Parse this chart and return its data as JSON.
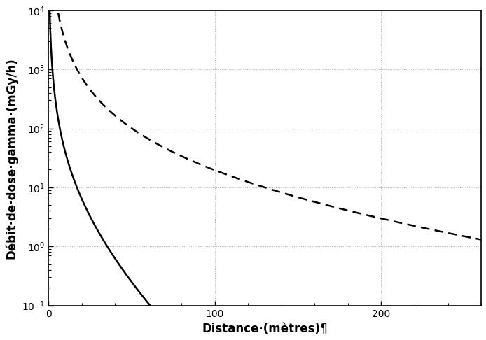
{
  "title": "",
  "xlabel": "Distance·(mètres)¶",
  "ylabel": "Débit·de·dose·gamma·(mGy/h)",
  "xlim": [
    0,
    260
  ],
  "ylim_log": [
    -1,
    4
  ],
  "x_ticks": [
    0,
    100,
    200
  ],
  "background_color": "#ffffff",
  "line_color": "#000000",
  "grid_color": "#aaaaaa",
  "D_ref_solid": 1500.0,
  "D_ref_dashed": 80000.0,
  "r_ref": 2.0,
  "mu_solid": 0.047,
  "mu_dashed": 0.005,
  "font_size_label": 12,
  "font_size_tick": 10,
  "line_width": 1.8
}
